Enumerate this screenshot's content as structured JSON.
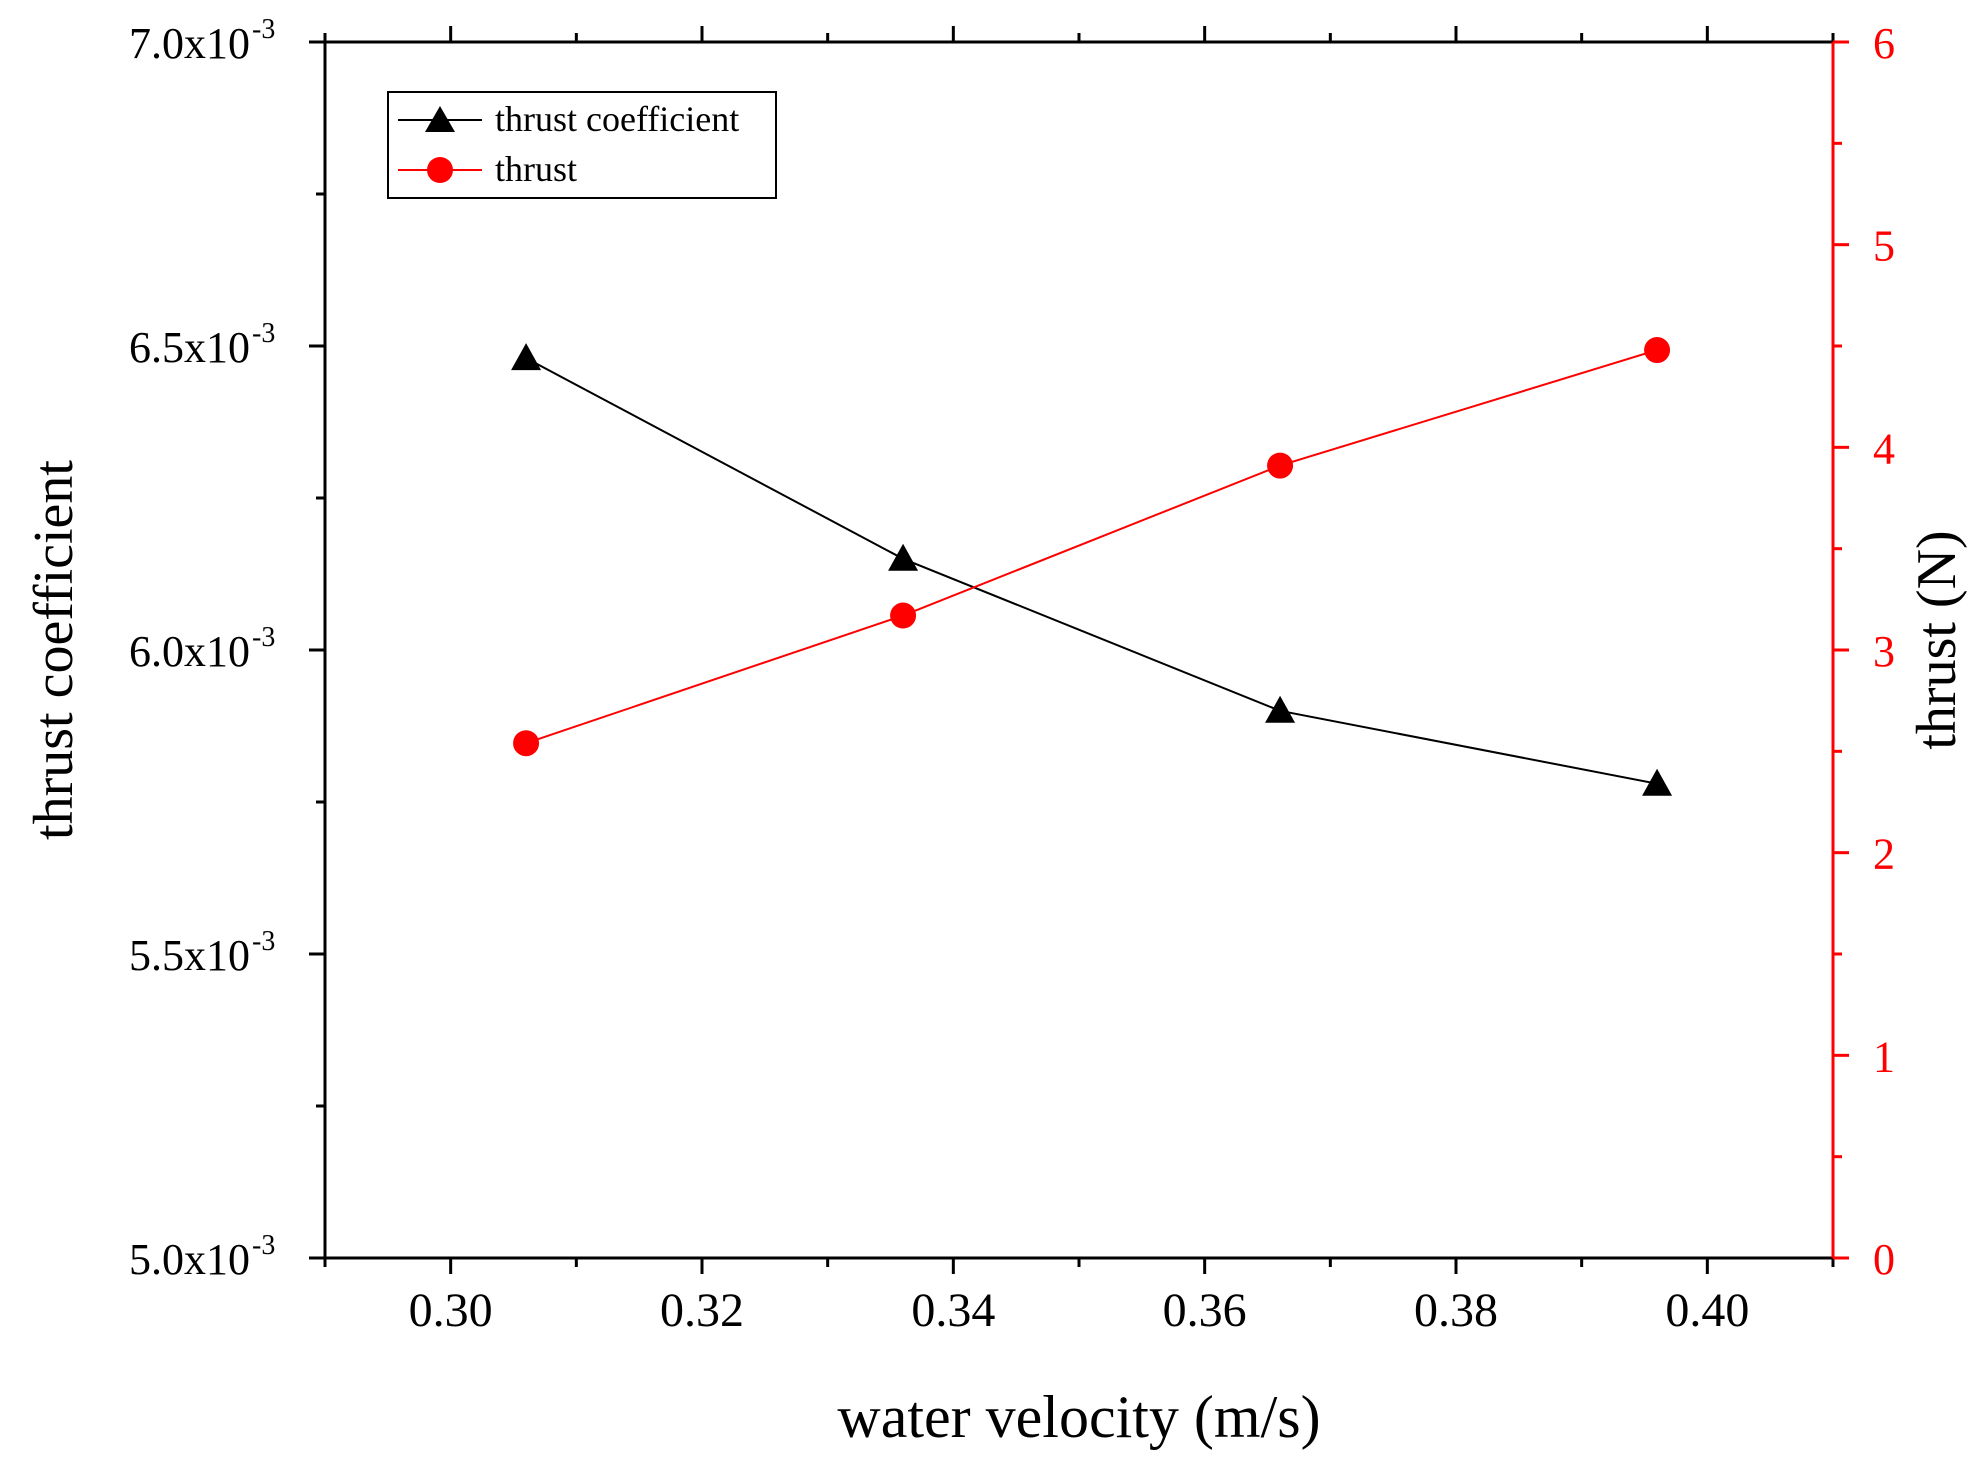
{
  "chart_data": {
    "type": "line",
    "xlabel": "water velocity (m/s)",
    "ylabel_left": "thrust coefficient",
    "ylabel_right": "thrust (N)",
    "xlim": [
      0.29,
      0.41
    ],
    "ylim_left": [
      0.005,
      0.007
    ],
    "ylim_right": [
      0,
      6
    ],
    "x_ticks": [
      0.3,
      0.32,
      0.34,
      0.36,
      0.38,
      0.4
    ],
    "x_tick_labels": [
      "0.30",
      "0.32",
      "0.34",
      "0.36",
      "0.38",
      "0.40"
    ],
    "y_left_ticks": [
      0.005,
      0.0055,
      0.006,
      0.0065,
      0.007
    ],
    "y_left_tick_labels": [
      {
        "mantissa": "5.0x10",
        "exponent": "-3"
      },
      {
        "mantissa": "5.5x10",
        "exponent": "-3"
      },
      {
        "mantissa": "6.0x10",
        "exponent": "-3"
      },
      {
        "mantissa": "6.5x10",
        "exponent": "-3"
      },
      {
        "mantissa": "7.0x10",
        "exponent": "-3"
      }
    ],
    "y_right_ticks": [
      0,
      1,
      2,
      3,
      4,
      5,
      6
    ],
    "y_right_tick_labels": [
      "0",
      "1",
      "2",
      "3",
      "4",
      "5",
      "6"
    ],
    "grid": false,
    "legend_position": "top-left",
    "series": [
      {
        "name": "thrust coefficient",
        "axis": "left",
        "color": "#000000",
        "marker": "triangle",
        "x": [
          0.306,
          0.336,
          0.366,
          0.396
        ],
        "values": [
          0.00648,
          0.00615,
          0.0059,
          0.00578
        ]
      },
      {
        "name": "thrust",
        "axis": "right",
        "color": "#ff0000",
        "marker": "circle",
        "x": [
          0.306,
          0.336,
          0.366,
          0.396
        ],
        "values": [
          2.54,
          3.17,
          3.91,
          4.48
        ]
      }
    ]
  }
}
